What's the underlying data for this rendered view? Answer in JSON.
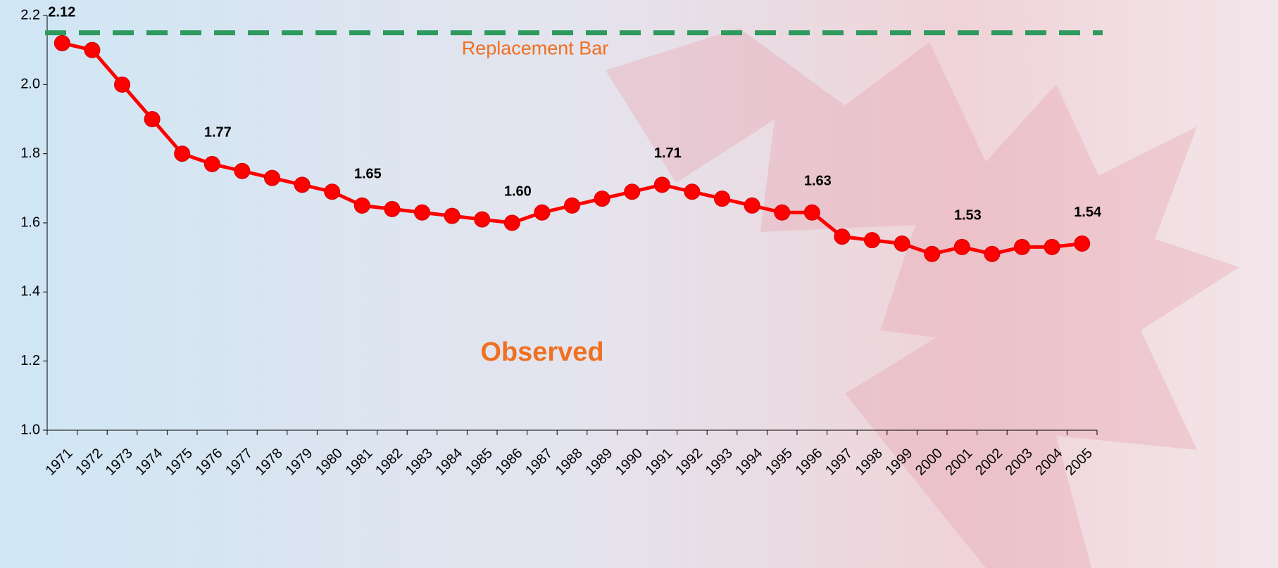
{
  "chart_data": {
    "type": "line",
    "categories": [
      "1971",
      "1972",
      "1973",
      "1974",
      "1975",
      "1976",
      "1977",
      "1978",
      "1979",
      "1980",
      "1981",
      "1982",
      "1983",
      "1984",
      "1985",
      "1986",
      "1987",
      "1988",
      "1989",
      "1990",
      "1991",
      "1992",
      "1993",
      "1994",
      "1995",
      "1996",
      "1997",
      "1998",
      "1999",
      "2000",
      "2001",
      "2002",
      "2003",
      "2004",
      "2005"
    ],
    "values": [
      2.12,
      2.1,
      2.0,
      1.9,
      1.8,
      1.77,
      1.75,
      1.73,
      1.71,
      1.69,
      1.65,
      1.64,
      1.63,
      1.62,
      1.61,
      1.6,
      1.63,
      1.65,
      1.67,
      1.69,
      1.71,
      1.69,
      1.67,
      1.65,
      1.63,
      1.63,
      1.56,
      1.55,
      1.54,
      1.51,
      1.53,
      1.51,
      1.53,
      1.53,
      1.54
    ],
    "value_labels": [
      "2.12",
      null,
      null,
      null,
      null,
      "1.77",
      null,
      null,
      null,
      null,
      "1.65",
      null,
      null,
      null,
      null,
      "1.60",
      null,
      null,
      null,
      null,
      "1.71",
      null,
      null,
      null,
      null,
      "1.63",
      null,
      null,
      null,
      null,
      "1.53",
      null,
      null,
      null,
      "1.54"
    ],
    "color": "#ff0000",
    "ylim": [
      1.0,
      2.2
    ],
    "yticks": [
      {
        "value": 1.0,
        "label": "1.0"
      },
      1.2,
      1.4,
      1.6,
      1.8,
      {
        "value": 2.0,
        "label": "2.0"
      },
      2.2
    ],
    "reference_line": {
      "value": 2.15,
      "label": "Replacement Bar",
      "color": "#2e9a5e",
      "label_color": "#f07020"
    },
    "annotation": {
      "text": "Observed",
      "color": "#f07020"
    }
  }
}
